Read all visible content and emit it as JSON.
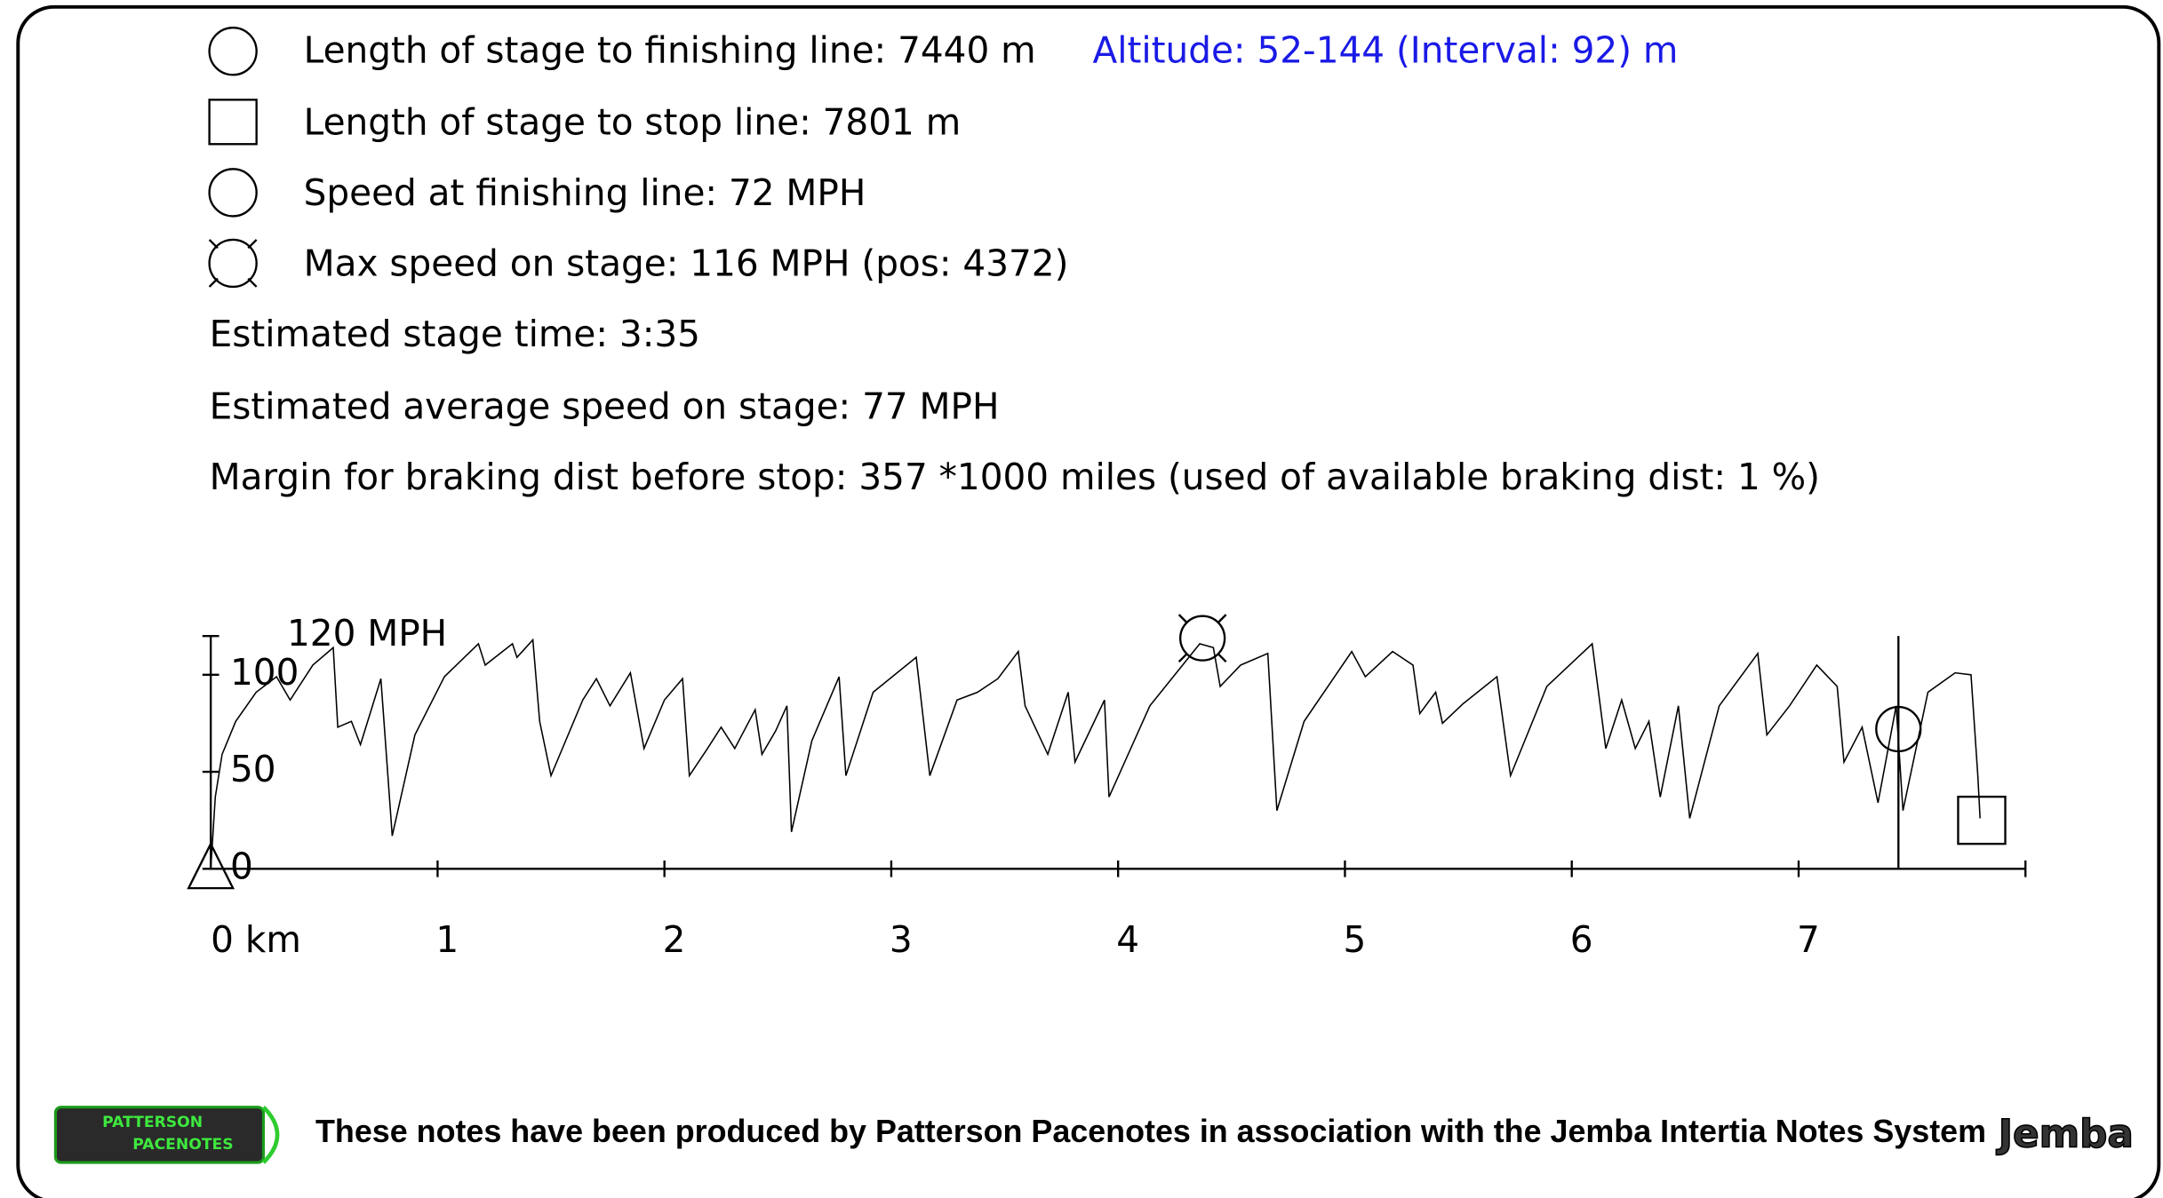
{
  "stats": [
    "Length of stage to finishing line: 7440 m",
    "Length of stage to stop line: 7801 m",
    "Speed at finishing line: 72 MPH",
    "Max speed on stage: 116 MPH (pos: 4372)",
    "Estimated stage time: 3:35",
    "Estimated average speed on stage: 77 MPH",
    "Margin for braking dist before stop: 357 *1000 miles (used of available braking dist: 1 %)"
  ],
  "altitude": "Altitude: 52-144 (Interval: 92) m",
  "chart_data": {
    "type": "line",
    "color": "#000000",
    "x": [
      0,
      0.02,
      0.05,
      0.11,
      0.2,
      0.29,
      0.35,
      0.45,
      0.54,
      0.56,
      0.62,
      0.66,
      0.75,
      0.8,
      0.9,
      1.03,
      1.18,
      1.21,
      1.33,
      1.35,
      1.42,
      1.45,
      1.5,
      1.64,
      1.7,
      1.76,
      1.85,
      1.91,
      2.0,
      2.08,
      2.11,
      2.19,
      2.25,
      2.31,
      2.4,
      2.43,
      2.49,
      2.54,
      2.56,
      2.65,
      2.77,
      2.8,
      2.92,
      3.11,
      3.17,
      3.29,
      3.38,
      3.47,
      3.56,
      3.59,
      3.69,
      3.78,
      3.81,
      3.94,
      3.96,
      4.14,
      4.36,
      4.42,
      4.45,
      4.54,
      4.66,
      4.7,
      4.82,
      5.03,
      5.09,
      5.21,
      5.3,
      5.33,
      5.4,
      5.43,
      5.52,
      5.67,
      5.73,
      5.89,
      6.09,
      6.15,
      6.22,
      6.28,
      6.34,
      6.39,
      6.47,
      6.52,
      6.65,
      6.82,
      6.86,
      6.96,
      7.08,
      7.17,
      7.2,
      7.28,
      7.35,
      7.43,
      7.46,
      7.57,
      7.69,
      7.76,
      7.79,
      7.8
    ],
    "values": [
      0,
      37,
      59,
      76,
      91,
      99,
      87,
      105,
      114,
      73,
      76,
      64,
      98,
      17,
      69,
      99,
      116,
      105,
      116,
      109,
      118,
      76,
      48,
      87,
      98,
      84,
      101,
      62,
      87,
      98,
      48,
      62,
      73,
      62,
      82,
      59,
      71,
      84,
      19,
      66,
      99,
      48,
      91,
      109,
      48,
      87,
      91,
      98,
      112,
      84,
      59,
      91,
      55,
      87,
      37,
      84,
      116,
      114,
      94,
      105,
      111,
      30,
      76,
      112,
      99,
      112,
      105,
      80,
      91,
      75,
      85,
      99,
      48,
      94,
      116,
      62,
      87,
      62,
      76,
      37,
      84,
      26,
      84,
      111,
      69,
      84,
      105,
      94,
      55,
      73,
      34,
      84,
      30,
      91,
      101,
      100,
      48,
      26
    ],
    "xlim": [
      0,
      8
    ],
    "ylim": [
      0,
      120
    ],
    "xticks": [
      {
        "value": 0,
        "label": "0 km"
      },
      1,
      2,
      3,
      4,
      5,
      6,
      7
    ],
    "yticks": [
      0,
      50,
      100,
      {
        "value": 120,
        "label": "120 MPH"
      }
    ],
    "finish_x": 7.44,
    "finish_speed": 72,
    "max_x": 4.372,
    "max_speed": 116,
    "stop_x": 7.801
  },
  "footer": {
    "text": "These notes have been produced by Patterson Pacenotes in association with the Jemba Intertia Notes System",
    "logo_left": [
      "PATTERSON",
      "PACENOTES"
    ],
    "logo_right": "Jemba"
  }
}
